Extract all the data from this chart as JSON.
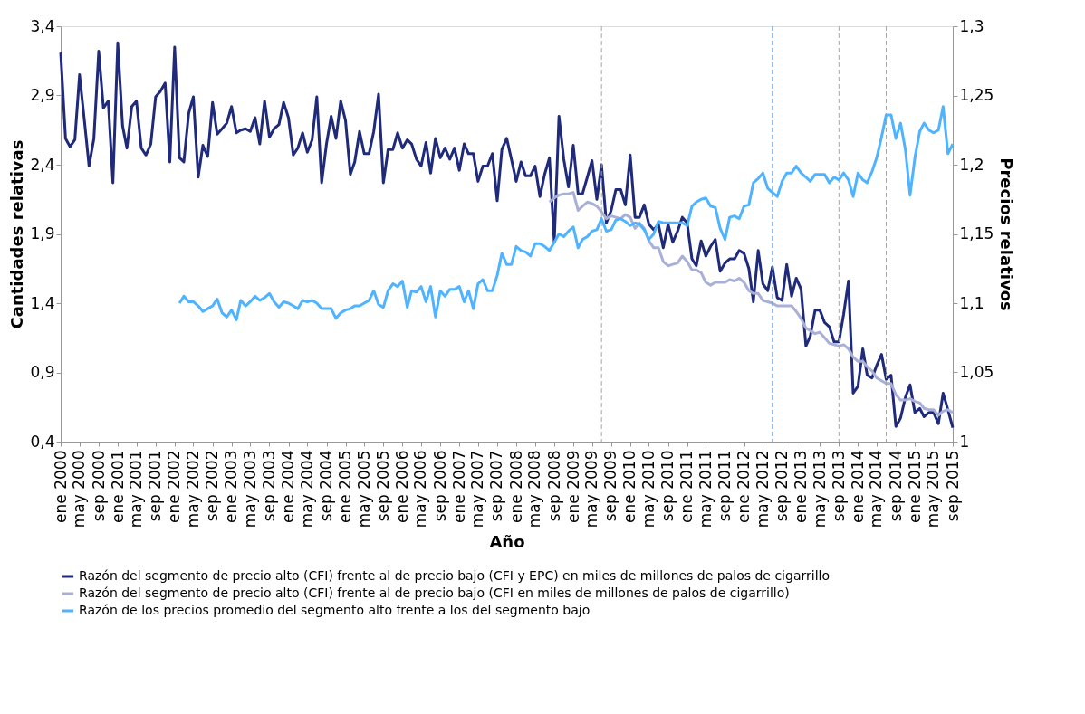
{
  "chart_data": {
    "type": "line",
    "xlabel": "Año",
    "ylabel": "Cantidades relativas",
    "y2label": "Precios relativos",
    "x": [
      "2000-01",
      "2000-02",
      "2000-03",
      "2000-04",
      "2000-05",
      "2000-06",
      "2000-07",
      "2000-08",
      "2000-09",
      "2000-10",
      "2000-11",
      "2000-12",
      "2001-01",
      "2001-02",
      "2001-03",
      "2001-04",
      "2001-05",
      "2001-06",
      "2001-07",
      "2001-08",
      "2001-09",
      "2001-10",
      "2001-11",
      "2001-12",
      "2002-01",
      "2002-02",
      "2002-03",
      "2002-04",
      "2002-05",
      "2002-06",
      "2002-07",
      "2002-08",
      "2002-09",
      "2002-10",
      "2002-11",
      "2002-12",
      "2003-01",
      "2003-02",
      "2003-03",
      "2003-04",
      "2003-05",
      "2003-06",
      "2003-07",
      "2003-08",
      "2003-09",
      "2003-10",
      "2003-11",
      "2003-12",
      "2004-01",
      "2004-02",
      "2004-03",
      "2004-04",
      "2004-05",
      "2004-06",
      "2004-07",
      "2004-08",
      "2004-09",
      "2004-10",
      "2004-11",
      "2004-12",
      "2005-01",
      "2005-02",
      "2005-03",
      "2005-04",
      "2005-05",
      "2005-06",
      "2005-07",
      "2005-08",
      "2005-09",
      "2005-10",
      "2005-11",
      "2005-12",
      "2006-01",
      "2006-02",
      "2006-03",
      "2006-04",
      "2006-05",
      "2006-06",
      "2006-07",
      "2006-08",
      "2006-09",
      "2006-10",
      "2006-11",
      "2006-12",
      "2007-01",
      "2007-02",
      "2007-03",
      "2007-04",
      "2007-05",
      "2007-06",
      "2007-07",
      "2007-08",
      "2007-09",
      "2007-10",
      "2007-11",
      "2007-12",
      "2008-01",
      "2008-02",
      "2008-03",
      "2008-04",
      "2008-05",
      "2008-06",
      "2008-07",
      "2008-08",
      "2008-09",
      "2008-10",
      "2008-11",
      "2008-12",
      "2009-01",
      "2009-02",
      "2009-03",
      "2009-04",
      "2009-05",
      "2009-06",
      "2009-07",
      "2009-08",
      "2009-09",
      "2009-10",
      "2009-11",
      "2009-12",
      "2010-01",
      "2010-02",
      "2010-03",
      "2010-04",
      "2010-05",
      "2010-06",
      "2010-07",
      "2010-08",
      "2010-09",
      "2010-10",
      "2010-11",
      "2010-12",
      "2011-01",
      "2011-02",
      "2011-03",
      "2011-04",
      "2011-05",
      "2011-06",
      "2011-07",
      "2011-08",
      "2011-09",
      "2011-10",
      "2011-11",
      "2011-12",
      "2012-01",
      "2012-02",
      "2012-03",
      "2012-04",
      "2012-05",
      "2012-06",
      "2012-07",
      "2012-08",
      "2012-09",
      "2012-10",
      "2012-11",
      "2012-12",
      "2013-01",
      "2013-02",
      "2013-03",
      "2013-04",
      "2013-05",
      "2013-06",
      "2013-07",
      "2013-08",
      "2013-09",
      "2013-10",
      "2013-11",
      "2013-12",
      "2014-01",
      "2014-02",
      "2014-03",
      "2014-04",
      "2014-05",
      "2014-06",
      "2014-07",
      "2014-08",
      "2014-09",
      "2014-10",
      "2014-11",
      "2014-12",
      "2015-01",
      "2015-02",
      "2015-03",
      "2015-04",
      "2015-05",
      "2015-06",
      "2015-07",
      "2015-08",
      "2015-09"
    ],
    "xlim": [
      "2000-01",
      "2015-09"
    ],
    "xticks": [
      {
        "value": "2000-01",
        "label": "ene 2000"
      },
      {
        "value": "2000-05",
        "label": "may 2000"
      },
      {
        "value": "2000-09",
        "label": "sep 2000"
      },
      {
        "value": "2001-01",
        "label": "ene 2001"
      },
      {
        "value": "2001-05",
        "label": "may 2001"
      },
      {
        "value": "2001-09",
        "label": "sep 2001"
      },
      {
        "value": "2002-01",
        "label": "ene 2002"
      },
      {
        "value": "2002-05",
        "label": "may 2002"
      },
      {
        "value": "2002-09",
        "label": "sep 2002"
      },
      {
        "value": "2003-01",
        "label": "ene 2003"
      },
      {
        "value": "2003-05",
        "label": "may 2003"
      },
      {
        "value": "2003-09",
        "label": "sep 2003"
      },
      {
        "value": "2004-01",
        "label": "ene 2004"
      },
      {
        "value": "2004-05",
        "label": "may 2004"
      },
      {
        "value": "2004-09",
        "label": "sep 2004"
      },
      {
        "value": "2005-01",
        "label": "ene 2005"
      },
      {
        "value": "2005-05",
        "label": "may 2005"
      },
      {
        "value": "2005-09",
        "label": "sep 2005"
      },
      {
        "value": "2006-01",
        "label": "ene 2006"
      },
      {
        "value": "2006-05",
        "label": "may 2006"
      },
      {
        "value": "2006-09",
        "label": "sep 2006"
      },
      {
        "value": "2007-01",
        "label": "ene 2007"
      },
      {
        "value": "2007-05",
        "label": "may 2007"
      },
      {
        "value": "2007-09",
        "label": "sep 2007"
      },
      {
        "value": "2008-01",
        "label": "ene 2008"
      },
      {
        "value": "2008-05",
        "label": "may 2008"
      },
      {
        "value": "2008-09",
        "label": "sep 2008"
      },
      {
        "value": "2009-01",
        "label": "ene 2009"
      },
      {
        "value": "2009-05",
        "label": "may 2009"
      },
      {
        "value": "2009-09",
        "label": "sep 2009"
      },
      {
        "value": "2010-01",
        "label": "ene 2010"
      },
      {
        "value": "2010-05",
        "label": "may 2010"
      },
      {
        "value": "2010-09",
        "label": "sep 2010"
      },
      {
        "value": "2011-01",
        "label": "ene 2011"
      },
      {
        "value": "2011-05",
        "label": "may 2011"
      },
      {
        "value": "2011-09",
        "label": "sep 2011"
      },
      {
        "value": "2012-01",
        "label": "ene 2012"
      },
      {
        "value": "2012-05",
        "label": "may 2012"
      },
      {
        "value": "2012-09",
        "label": "sep 2012"
      },
      {
        "value": "2013-01",
        "label": "ene 2013"
      },
      {
        "value": "2013-05",
        "label": "may 2013"
      },
      {
        "value": "2013-09",
        "label": "sep 2013"
      },
      {
        "value": "2014-01",
        "label": "ene 2014"
      },
      {
        "value": "2014-05",
        "label": "may 2014"
      },
      {
        "value": "2014-09",
        "label": "sep 2014"
      },
      {
        "value": "2015-01",
        "label": "ene 2015"
      },
      {
        "value": "2015-05",
        "label": "may 2015"
      },
      {
        "value": "2015-09",
        "label": "sep 2015"
      }
    ],
    "ylim": [
      0.4,
      3.4
    ],
    "yticks": [
      {
        "value": 0.4,
        "label": "0,4"
      },
      {
        "value": 0.9,
        "label": "0,9"
      },
      {
        "value": 1.4,
        "label": "1,4"
      },
      {
        "value": 1.9,
        "label": "1,9"
      },
      {
        "value": 2.4,
        "label": "2,4"
      },
      {
        "value": 2.9,
        "label": "2,9"
      },
      {
        "value": 3.4,
        "label": "3,4"
      }
    ],
    "y2lim": [
      1,
      1.3
    ],
    "y2ticks": [
      1,
      {
        "value": 1.05,
        "label": "1,05"
      },
      {
        "value": 1.1,
        "label": "1,1"
      },
      {
        "value": 1.15,
        "label": "1,15"
      },
      {
        "value": 1.2,
        "label": "1,2"
      },
      {
        "value": 1.25,
        "label": "1,25"
      },
      {
        "value": 1.3,
        "label": "1,3"
      }
    ],
    "grid": false,
    "legend": "bottom",
    "line_style": "solid",
    "ref_lines": [
      {
        "axis": "x",
        "value": "2009-07",
        "color": "#a6a6a6",
        "line_style": "dashed"
      },
      {
        "axis": "x",
        "value": "2012-07",
        "color": "#5b9bd5",
        "line_style": "dashed"
      },
      {
        "axis": "x",
        "value": "2013-09",
        "color": "#a6a6a6",
        "line_style": "dashed"
      },
      {
        "axis": "x",
        "value": "2014-07",
        "color": "#a6a6a6",
        "line_style": "dashed"
      }
    ],
    "series": [
      {
        "name": "Razón del segmento de precio alto (CFI) frente al de precio bajo (CFI y EPC) en miles de millones de palos de cigarrillo",
        "color": "#1f2a7a",
        "values": [
          3.21,
          2.59,
          2.53,
          2.58,
          3.05,
          2.72,
          2.39,
          2.59,
          3.22,
          2.81,
          2.86,
          2.27,
          3.28,
          2.68,
          2.52,
          2.82,
          2.86,
          2.52,
          2.47,
          2.55,
          2.89,
          2.93,
          2.99,
          2.42,
          3.25,
          2.45,
          2.42,
          2.77,
          2.89,
          2.31,
          2.54,
          2.46,
          2.85,
          2.62,
          2.66,
          2.7,
          2.82,
          2.63,
          2.65,
          2.66,
          2.64,
          2.74,
          2.55,
          2.86,
          2.6,
          2.66,
          2.69,
          2.85,
          2.74,
          2.47,
          2.52,
          2.63,
          2.49,
          2.58,
          2.89,
          2.27,
          2.55,
          2.75,
          2.59,
          2.86,
          2.72,
          2.33,
          2.42,
          2.64,
          2.48,
          2.48,
          2.64,
          2.91,
          2.27,
          2.51,
          2.51,
          2.63,
          2.52,
          2.58,
          2.55,
          2.44,
          2.39,
          2.56,
          2.34,
          2.59,
          2.45,
          2.52,
          2.44,
          2.52,
          2.36,
          2.55,
          2.48,
          2.48,
          2.28,
          2.39,
          2.39,
          2.48,
          2.14,
          2.51,
          2.59,
          2.44,
          2.28,
          2.42,
          2.32,
          2.32,
          2.39,
          2.17,
          2.33,
          2.45,
          1.84,
          2.75,
          2.44,
          2.24,
          2.54,
          2.19,
          2.19,
          2.31,
          2.43,
          2.15,
          2.4,
          1.98,
          2.07,
          2.22,
          2.22,
          2.11,
          2.47,
          2.02,
          2.02,
          2.11,
          1.97,
          1.93,
          1.97,
          1.8,
          1.97,
          1.84,
          1.92,
          2.02,
          1.98,
          1.72,
          1.67,
          1.85,
          1.74,
          1.81,
          1.86,
          1.63,
          1.69,
          1.72,
          1.72,
          1.78,
          1.76,
          1.65,
          1.41,
          1.78,
          1.54,
          1.49,
          1.66,
          1.44,
          1.42,
          1.68,
          1.45,
          1.58,
          1.5,
          1.09,
          1.16,
          1.35,
          1.35,
          1.26,
          1.23,
          1.12,
          1.12,
          1.32,
          1.56,
          0.75,
          0.8,
          1.07,
          0.88,
          0.86,
          0.95,
          1.03,
          0.85,
          0.88,
          0.51,
          0.57,
          0.72,
          0.81,
          0.61,
          0.64,
          0.58,
          0.61,
          0.61,
          0.53,
          0.75,
          0.63,
          0.5
        ]
      },
      {
        "name": "Razón del segmento de precio alto (CFI) frente al de precio bajo (CFI en miles de millones de palos de cigarrillo)",
        "color": "#a9b0d8",
        "values": [
          null,
          null,
          null,
          null,
          null,
          null,
          null,
          null,
          null,
          null,
          null,
          null,
          null,
          null,
          null,
          null,
          null,
          null,
          null,
          null,
          null,
          null,
          null,
          null,
          null,
          null,
          null,
          null,
          null,
          null,
          null,
          null,
          null,
          null,
          null,
          null,
          null,
          null,
          null,
          null,
          null,
          null,
          null,
          null,
          null,
          null,
          null,
          null,
          null,
          null,
          null,
          null,
          null,
          null,
          null,
          null,
          null,
          null,
          null,
          null,
          null,
          null,
          null,
          null,
          null,
          null,
          null,
          null,
          null,
          null,
          null,
          null,
          null,
          null,
          null,
          null,
          null,
          null,
          null,
          null,
          null,
          null,
          null,
          null,
          null,
          null,
          null,
          null,
          null,
          null,
          null,
          null,
          null,
          null,
          null,
          null,
          null,
          null,
          null,
          null,
          null,
          null,
          null,
          2.13,
          2.16,
          2.18,
          2.19,
          2.19,
          2.2,
          2.07,
          2.1,
          2.13,
          2.12,
          2.1,
          2.06,
          2.01,
          2.03,
          2.02,
          2.01,
          2.04,
          2.02,
          1.94,
          1.98,
          1.94,
          1.85,
          1.8,
          1.8,
          1.7,
          1.67,
          1.68,
          1.69,
          1.74,
          1.7,
          1.64,
          1.64,
          1.62,
          1.55,
          1.53,
          1.55,
          1.55,
          1.55,
          1.57,
          1.56,
          1.58,
          1.55,
          1.49,
          1.47,
          1.47,
          1.42,
          1.41,
          1.4,
          1.38,
          1.38,
          1.38,
          1.38,
          1.34,
          1.29,
          1.22,
          1.2,
          1.18,
          1.19,
          1.15,
          1.11,
          1.1,
          1.09,
          1.1,
          1.07,
          1.01,
          0.98,
          0.98,
          0.94,
          0.91,
          0.86,
          0.84,
          0.82,
          0.82,
          0.74,
          0.7,
          0.7,
          0.71,
          0.69,
          0.68,
          0.64,
          0.63,
          0.63,
          0.59,
          0.62,
          0.63,
          0.61
        ]
      },
      {
        "name": "Razón de los precios promedio del segmento alto frente a los del segmento bajo",
        "color": "#4fb3ff",
        "axis": "y2",
        "values": [
          null,
          null,
          null,
          null,
          null,
          null,
          null,
          null,
          null,
          null,
          null,
          null,
          null,
          null,
          null,
          null,
          null,
          null,
          null,
          null,
          null,
          null,
          null,
          null,
          null,
          1.1,
          1.105,
          1.101,
          1.101,
          1.098,
          1.094,
          1.096,
          1.098,
          1.103,
          1.093,
          1.09,
          1.095,
          1.088,
          1.102,
          1.098,
          1.101,
          1.105,
          1.102,
          1.104,
          1.107,
          1.101,
          1.097,
          1.101,
          1.1,
          1.098,
          1.096,
          1.102,
          1.101,
          1.102,
          1.1,
          1.096,
          1.096,
          1.096,
          1.089,
          1.093,
          1.095,
          1.096,
          1.098,
          1.098,
          1.1,
          1.102,
          1.109,
          1.099,
          1.097,
          1.109,
          1.114,
          1.112,
          1.116,
          1.097,
          1.109,
          1.108,
          1.112,
          1.101,
          1.112,
          1.09,
          1.109,
          1.105,
          1.11,
          1.11,
          1.112,
          1.101,
          1.109,
          1.096,
          1.114,
          1.117,
          1.109,
          1.109,
          1.12,
          1.136,
          1.128,
          1.128,
          1.141,
          1.138,
          1.137,
          1.134,
          1.143,
          1.143,
          1.141,
          1.138,
          1.144,
          1.15,
          1.148,
          1.152,
          1.155,
          1.14,
          1.146,
          1.148,
          1.152,
          1.153,
          1.161,
          1.152,
          1.153,
          1.16,
          1.161,
          1.159,
          1.156,
          1.158,
          1.157,
          1.153,
          1.146,
          1.15,
          1.159,
          1.158,
          1.158,
          1.158,
          1.158,
          1.158,
          1.156,
          1.17,
          1.173,
          1.175,
          1.176,
          1.17,
          1.169,
          1.154,
          1.146,
          1.162,
          1.163,
          1.161,
          1.17,
          1.171,
          1.187,
          1.19,
          1.194,
          1.183,
          1.18,
          1.177,
          1.188,
          1.194,
          1.194,
          1.199,
          1.194,
          1.191,
          1.188,
          1.193,
          1.193,
          1.193,
          1.187,
          1.191,
          1.189,
          1.194,
          1.189,
          1.177,
          1.194,
          1.189,
          1.187,
          1.195,
          1.205,
          1.22,
          1.236,
          1.236,
          1.219,
          1.23,
          1.211,
          1.178,
          1.205,
          1.224,
          1.23,
          1.225,
          1.223,
          1.225,
          1.242,
          1.208,
          1.215
        ]
      }
    ]
  }
}
